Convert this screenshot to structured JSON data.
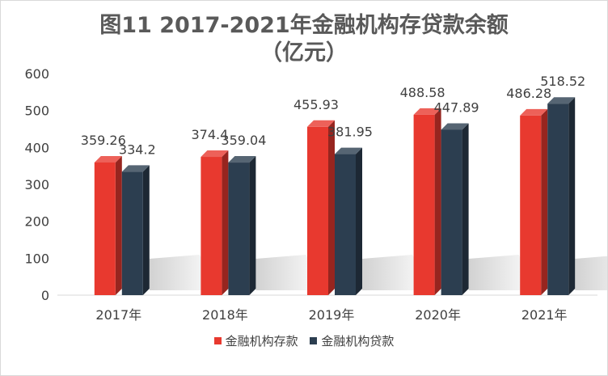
{
  "chart_data": {
    "type": "bar",
    "title_line1": "图11    2017-2021年金融机构存贷款余额",
    "title_line2": "（亿元）",
    "categories": [
      "2017年",
      "2018年",
      "2019年",
      "2020年",
      "2021年"
    ],
    "series": [
      {
        "name": "金融机构存款",
        "color": "#e8392f",
        "values": [
          359.26,
          374.4,
          455.93,
          488.58,
          486.28
        ]
      },
      {
        "name": "金融机构贷款",
        "color": "#2c3e50",
        "values": [
          334.2,
          359.04,
          381.95,
          447.89,
          518.52
        ]
      }
    ],
    "y_ticks": [
      "0",
      "100",
      "200",
      "300",
      "400",
      "500",
      "600"
    ],
    "ylim": [
      0,
      600
    ],
    "value_labels": [
      [
        "359.26",
        "374.4",
        "455.93",
        "488.58",
        "486.28"
      ],
      [
        "334.2",
        "359.04",
        "381.95",
        "447.89",
        "518.52"
      ]
    ],
    "grid": false,
    "legend_position": "bottom"
  }
}
